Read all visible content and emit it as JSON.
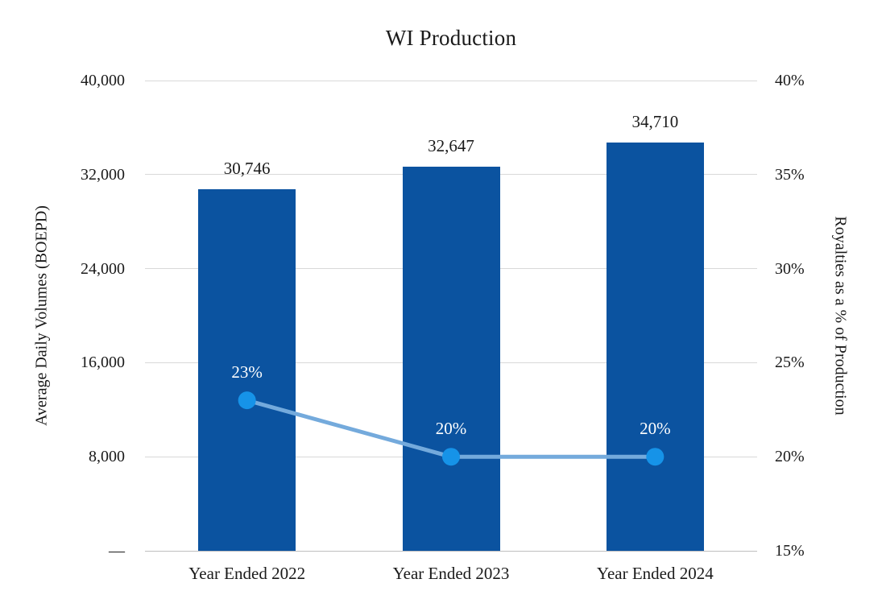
{
  "chart_data": {
    "type": "combo-bar-line",
    "title": "WI Production",
    "categories": [
      "Year Ended 2022",
      "Year Ended 2023",
      "Year Ended 2024"
    ],
    "series": [
      {
        "name": "Average Daily Volumes (BOEPD)",
        "type": "bar",
        "axis": "left",
        "values": [
          30746,
          32647,
          34710
        ],
        "labels": [
          "30,746",
          "32,647",
          "34,710"
        ],
        "color": "#0B53A0",
        "label_color": "#1a1a1a"
      },
      {
        "name": "Royalties as a % of Production",
        "type": "line",
        "axis": "right",
        "values": [
          23,
          20,
          20
        ],
        "labels": [
          "23%",
          "20%",
          "20%"
        ],
        "line_color": "#74AADC",
        "marker_color": "#1693E8",
        "label_color": "#ffffff"
      }
    ],
    "left_axis": {
      "title": "Average Daily Volumes (BOEPD)",
      "min": 0,
      "max": 40000,
      "tick_labels_top_to_bottom": [
        "40,000",
        "32,000",
        "24,000",
        "16,000",
        "8,000",
        "—"
      ]
    },
    "right_axis": {
      "title": "Royalties as a % of Production",
      "min": 15,
      "max": 40,
      "tick_labels_top_to_bottom": [
        "40%",
        "35%",
        "30%",
        "25%",
        "20%",
        "15%"
      ]
    },
    "grid": true,
    "legend": "none",
    "colors": {
      "gridline": "#d9d9d9",
      "axis_line": "#bfbfbf",
      "background": "#ffffff",
      "text": "#1a1a1a"
    }
  }
}
